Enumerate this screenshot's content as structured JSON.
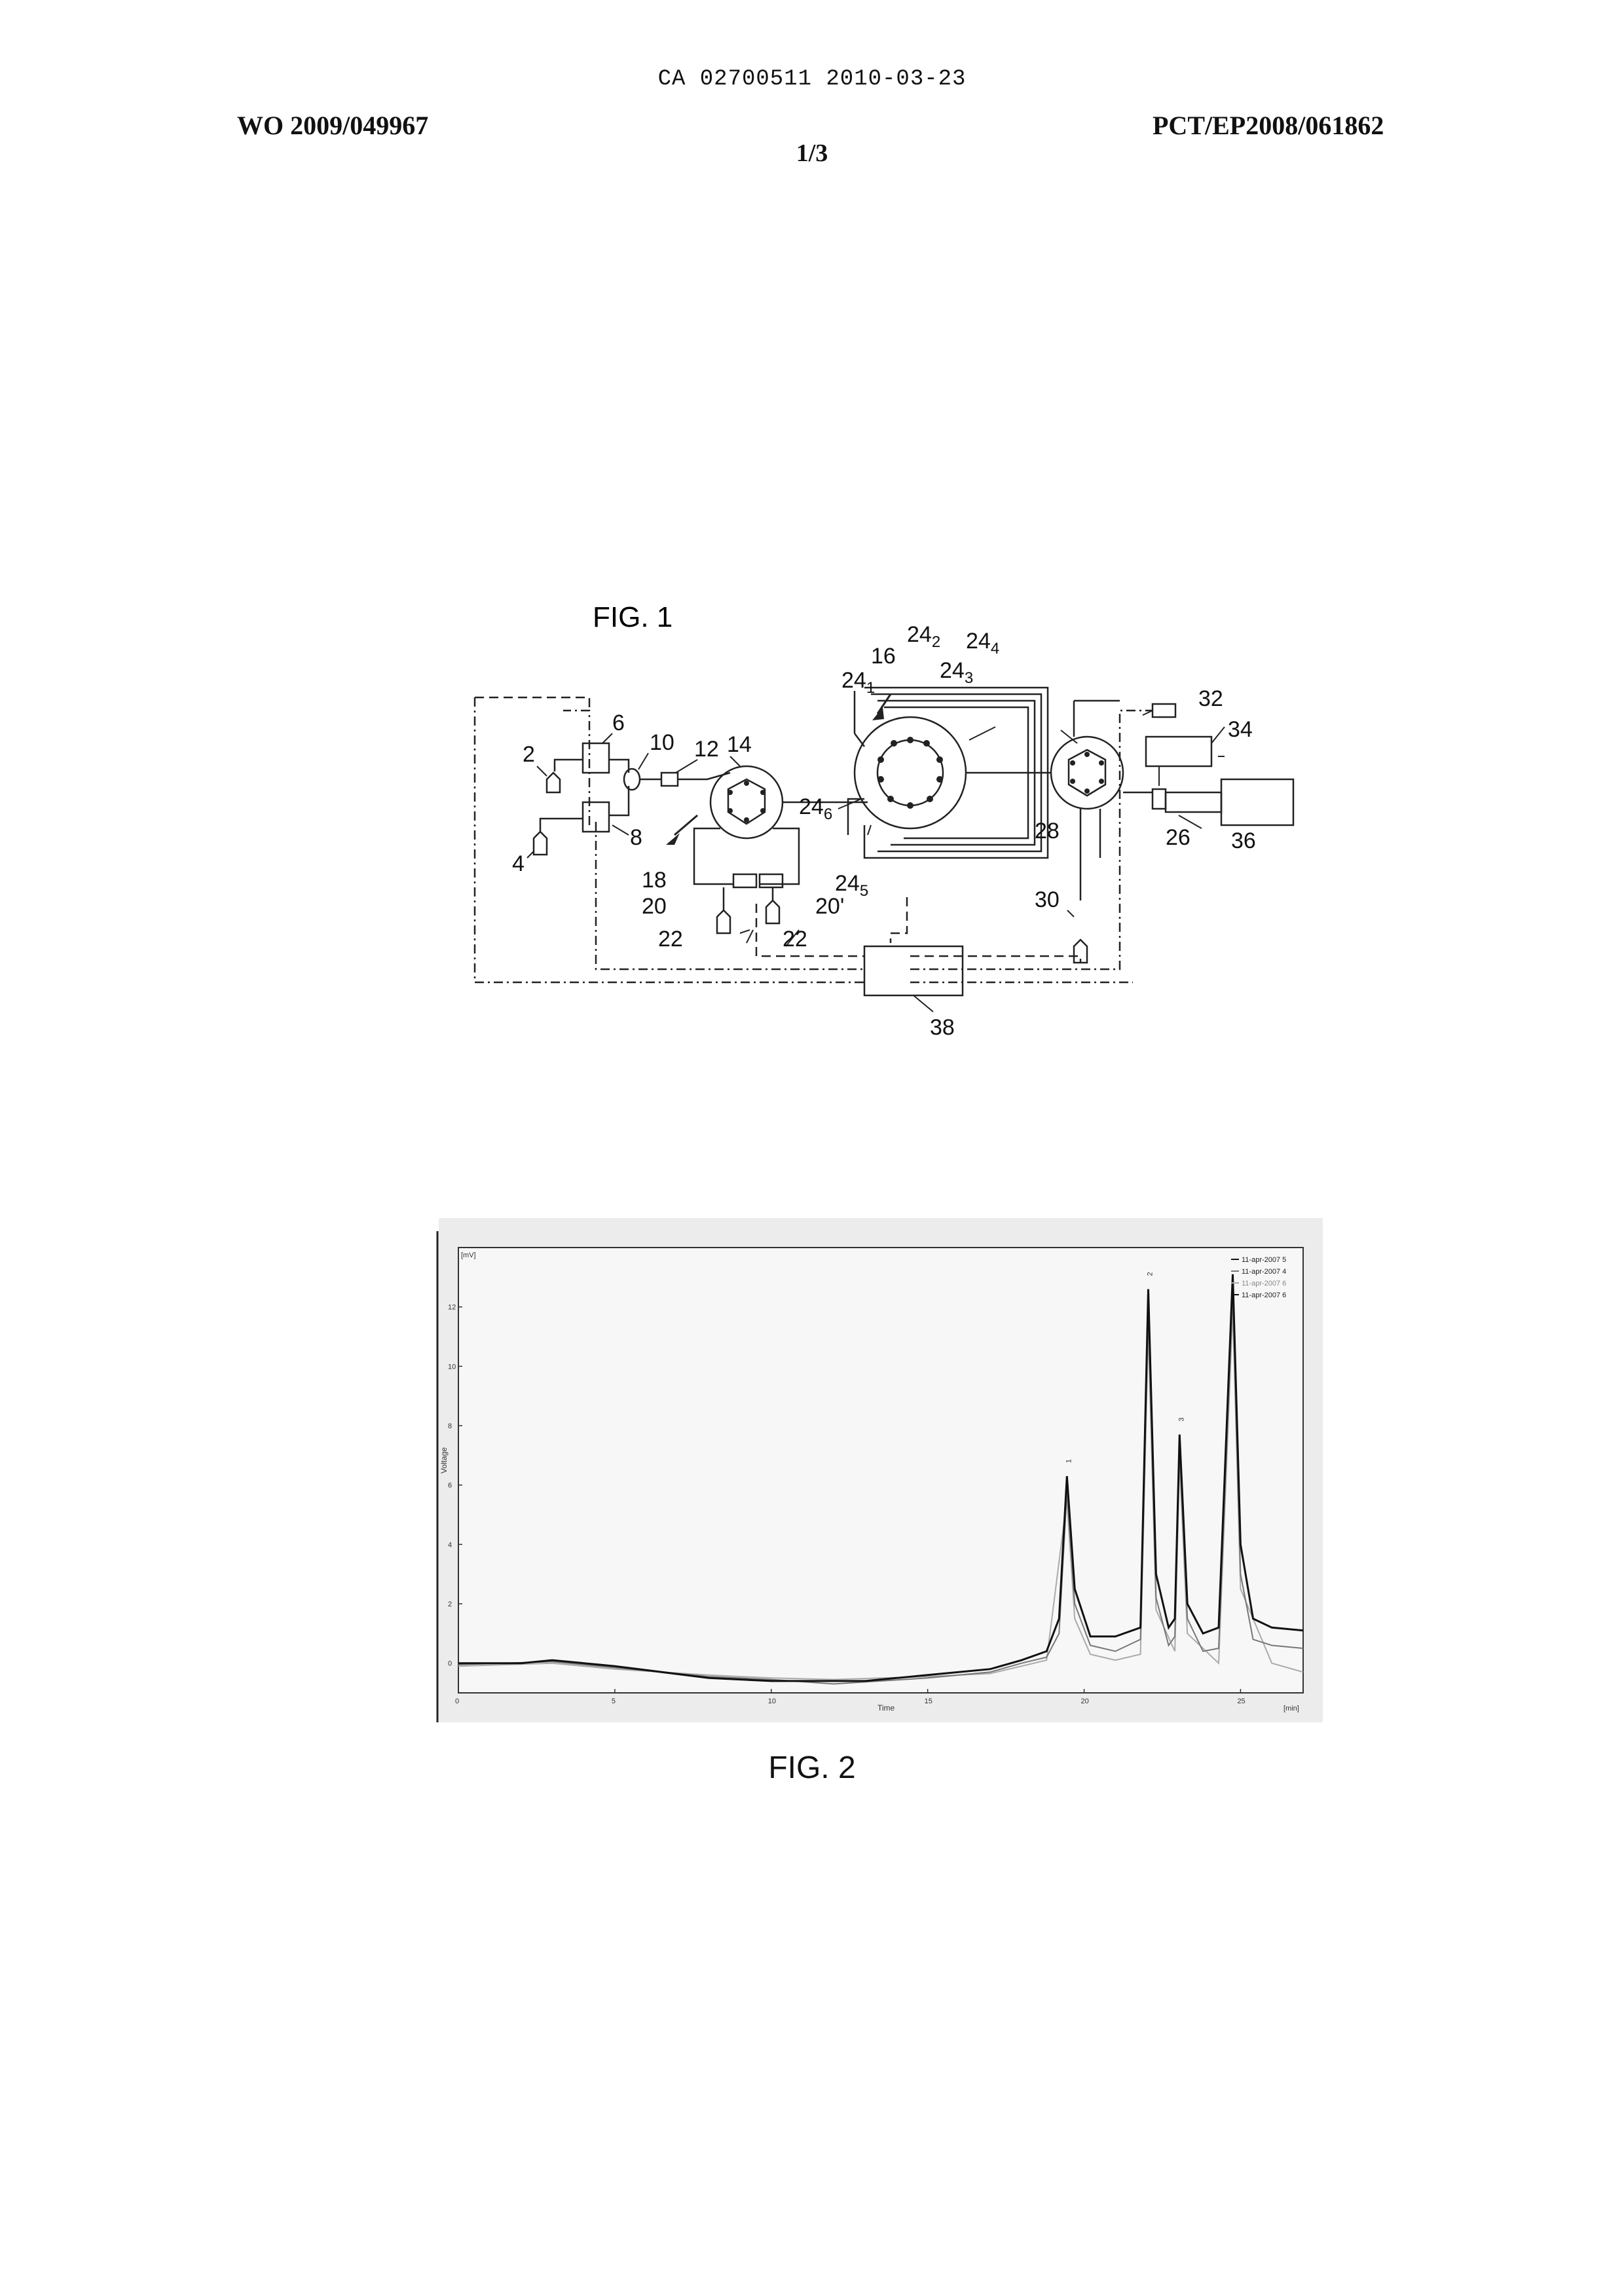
{
  "header": {
    "ca_line": "CA 02700511 2010-03-23",
    "wo": "WO 2009/049967",
    "pct": "PCT/EP2008/061862",
    "sheet": "1/3"
  },
  "fig1": {
    "caption": "FIG. 1",
    "labels": {
      "n2": "2",
      "n4": "4",
      "n6": "6",
      "n8": "8",
      "n10": "10",
      "n12": "12",
      "n14": "14",
      "n16": "16",
      "n18": "18",
      "n20": "20",
      "n20p": "20'",
      "n22a": "22",
      "n22b": "22",
      "n24": "24",
      "sub1": "1",
      "sub2": "2",
      "sub3": "3",
      "sub4": "4",
      "sub5": "5",
      "sub6": "6",
      "n26": "26",
      "n28": "28",
      "n30": "30",
      "n32": "32",
      "n34": "34",
      "n36": "36",
      "n38": "38"
    }
  },
  "fig2": {
    "caption": "FIG. 2"
  },
  "chart_data": {
    "type": "line",
    "title": "",
    "xlabel": "Time",
    "ylabel": "Voltage",
    "x_unit_label": "[min]",
    "y_unit_label": "[mV]",
    "xlim": [
      0,
      27
    ],
    "ylim": [
      -1,
      14
    ],
    "x_ticks": [
      0,
      5,
      10,
      15,
      20,
      25
    ],
    "y_ticks": [
      0,
      2,
      4,
      6,
      8,
      10,
      12
    ],
    "grid": false,
    "legend_position": "top-right",
    "legend": [
      "11-apr-2007 5",
      "11-apr-2007 4",
      "11-apr-2007 6",
      "11-apr-2007 6"
    ],
    "peak_labels": [
      "1",
      "2",
      "3"
    ],
    "series": [
      {
        "name": "11-apr-2007 5",
        "color": "#111111",
        "x": [
          0,
          2,
          3,
          5,
          8,
          10,
          12,
          13,
          15,
          17,
          18,
          18.8,
          19.2,
          19.45,
          19.7,
          20.2,
          21,
          21.8,
          22.05,
          22.3,
          22.7,
          22.9,
          23.05,
          23.3,
          23.8,
          24.3,
          24.75,
          25.0,
          25.4,
          26,
          27
        ],
        "y": [
          0,
          0,
          0.1,
          -0.1,
          -0.5,
          -0.6,
          -0.6,
          -0.6,
          -0.4,
          -0.2,
          0.1,
          0.4,
          1.5,
          6.3,
          2.5,
          0.9,
          0.9,
          1.2,
          12.6,
          3.0,
          1.2,
          1.5,
          7.7,
          2.0,
          1.0,
          1.2,
          13.1,
          4.0,
          1.5,
          1.2,
          1.1
        ]
      },
      {
        "name": "11-apr-2007 4",
        "color": "#777777",
        "x": [
          0,
          3,
          5,
          8,
          10,
          12,
          15,
          17,
          18,
          18.8,
          19.2,
          19.45,
          19.7,
          20.2,
          21,
          21.8,
          22.05,
          22.3,
          22.7,
          22.9,
          23.05,
          23.3,
          23.8,
          24.3,
          24.75,
          25.0,
          25.4,
          26,
          27
        ],
        "y": [
          -0.05,
          0.05,
          -0.15,
          -0.45,
          -0.55,
          -0.7,
          -0.5,
          -0.3,
          0,
          0.2,
          1.0,
          5.8,
          2.0,
          0.6,
          0.4,
          0.8,
          11.8,
          2.2,
          0.6,
          0.9,
          7.2,
          1.5,
          0.4,
          0.5,
          12.4,
          3.0,
          0.8,
          0.6,
          0.5
        ]
      },
      {
        "name": "11-apr-2007 6",
        "color": "#aaaaaa",
        "x": [
          0,
          3,
          5,
          8,
          10,
          12,
          15,
          17,
          18,
          18.8,
          19.45,
          19.7,
          20.2,
          21,
          21.8,
          22.05,
          22.3,
          22.9,
          23.05,
          23.3,
          24.3,
          24.75,
          25.0,
          26,
          27
        ],
        "y": [
          -0.1,
          0,
          -0.2,
          -0.4,
          -0.5,
          -0.55,
          -0.45,
          -0.35,
          -0.1,
          0.1,
          5.5,
          1.5,
          0.3,
          0.1,
          0.3,
          11.2,
          1.8,
          0.4,
          6.8,
          1.0,
          0,
          11.9,
          2.5,
          0,
          -0.3
        ]
      }
    ]
  }
}
